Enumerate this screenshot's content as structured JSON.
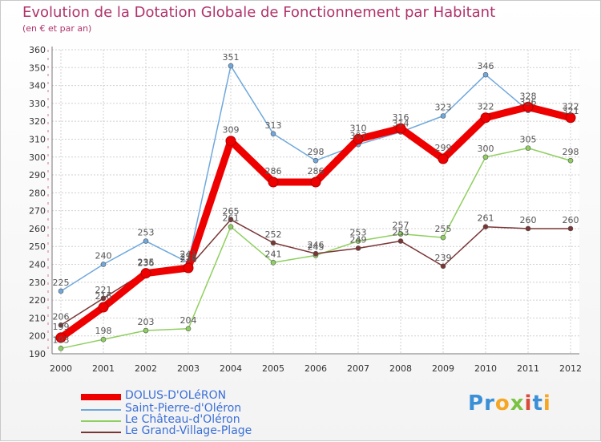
{
  "header": {
    "title": "Evolution de la Dotation Globale de Fonctionnement par Habitant",
    "subtitle": "(en € et par an)"
  },
  "chart_data": {
    "type": "line",
    "title": "Evolution de la Dotation Globale de Fonctionnement par Habitant",
    "subtitle": "(en € et par an)",
    "xlabel": "",
    "ylabel": "",
    "x": [
      "2000",
      "2001",
      "2002",
      "2003",
      "2004",
      "2005",
      "2006",
      "2007",
      "2008",
      "2009",
      "2010",
      "2011",
      "2012"
    ],
    "yticks": [
      190,
      200,
      210,
      220,
      230,
      240,
      250,
      260,
      270,
      280,
      290,
      300,
      310,
      320,
      330,
      340,
      350,
      360
    ],
    "ylim": [
      190,
      360
    ],
    "grid": true,
    "legend_position": "bottom-left",
    "series": [
      {
        "name": "DOLUS-D'OLéRON",
        "color": "#ee0000",
        "emphasis": true,
        "values": [
          199,
          216,
          235,
          238,
          309,
          286,
          286,
          310,
          316,
          299,
          322,
          328,
          322
        ],
        "labels": [
          "199",
          "216",
          "235",
          "238",
          "309",
          "286",
          "286",
          "310",
          "316",
          "299",
          "322",
          "328",
          "322"
        ]
      },
      {
        "name": "Saint-Pierre-d'Oléron",
        "color": "#6fa8dc",
        "emphasis": false,
        "values": [
          225,
          240,
          253,
          241,
          351,
          313,
          298,
          307,
          314,
          323,
          346,
          326,
          321
        ],
        "labels": [
          "225",
          "240",
          "253",
          "241",
          "351",
          "313",
          "298",
          "307",
          "314",
          "323",
          "346",
          "326",
          "321"
        ]
      },
      {
        "name": "Le Château-d'Oléron",
        "color": "#8fcf5f",
        "emphasis": false,
        "values": [
          193,
          198,
          203,
          204,
          261,
          241,
          245,
          253,
          257,
          255,
          300,
          305,
          298
        ],
        "labels": [
          "193",
          "198",
          "203",
          "204",
          "261",
          "241",
          "245",
          "253",
          "257",
          "255",
          "300",
          "305",
          "298"
        ]
      },
      {
        "name": "Le Grand-Village-Plage",
        "color": "#7a3535",
        "emphasis": false,
        "values": [
          206,
          221,
          236,
          238,
          265,
          252,
          246,
          249,
          253,
          239,
          261,
          260,
          260
        ],
        "labels": [
          "206",
          "221",
          "236",
          "238",
          "265",
          "252",
          "246",
          "249",
          "253",
          "239",
          "261",
          "260",
          "260"
        ]
      }
    ]
  },
  "legend": {
    "items": [
      {
        "label": "DOLUS-D'OLéRON",
        "color": "#ee0000"
      },
      {
        "label": "Saint-Pierre-d'Oléron",
        "color": "#6fa8dc"
      },
      {
        "label": "Le Château-d'Oléron",
        "color": "#8fcf5f"
      },
      {
        "label": "Le Grand-Village-Plage",
        "color": "#7a3535"
      }
    ]
  },
  "logo": {
    "letters": [
      "P",
      "r",
      "o",
      "x",
      "i",
      "t",
      "i"
    ],
    "colors": [
      "#3a8fd6",
      "#3a8fd6",
      "#f5a623",
      "#7cc242",
      "#d94a3a",
      "#3a8fd6",
      "#f5a623"
    ]
  }
}
